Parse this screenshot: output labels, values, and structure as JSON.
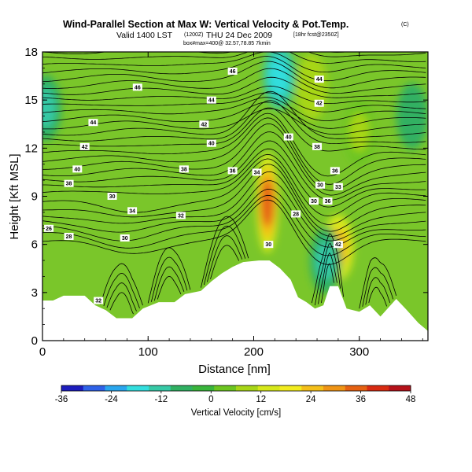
{
  "chart_data": {
    "type": "heatmap",
    "title": "Wind-Parallel Section at Max W: Vertical Velocity & Pot.Temp.",
    "title_mark": "(C)",
    "subtitle": "Valid 1400 LST",
    "subtitle_utc": "(1200Z)",
    "subtitle_date": "THU 24 Dec 2009",
    "subtitle_forecast": "[18hr fcst@2350Z]",
    "info_line": "box#max=400@ 32.57,78.85 7kmin",
    "xlabel": "Distance [nm]",
    "ylabel": "Height [Kft MSL]",
    "xlim": [
      0,
      365
    ],
    "ylim": [
      0,
      18
    ],
    "x_ticks": [
      0,
      100,
      200,
      300
    ],
    "y_ticks": [
      0,
      3,
      6,
      9,
      12,
      15,
      18
    ],
    "colorbar": {
      "label": "Vertical Velocity [cm/s]",
      "ticks": [
        "-36",
        "-24",
        "-12",
        "0",
        "12",
        "24",
        "36",
        "48"
      ],
      "min": -36,
      "max": 48,
      "colors": [
        "#1d1dbd",
        "#2f62e8",
        "#2aa6ee",
        "#33dede",
        "#36c9a6",
        "#30b062",
        "#39b53b",
        "#6cc520",
        "#a7d617",
        "#d6e81a",
        "#f2ec1e",
        "#f4bf19",
        "#ef9415",
        "#e56112",
        "#d82b12",
        "#b5121a"
      ]
    },
    "terrain_heights_kft": [
      [
        0,
        2.5
      ],
      [
        10,
        2.5
      ],
      [
        20,
        2.8
      ],
      [
        40,
        2.8
      ],
      [
        50,
        2.2
      ],
      [
        60,
        1.9
      ],
      [
        70,
        1.4
      ],
      [
        85,
        1.4
      ],
      [
        95,
        2.0
      ],
      [
        110,
        2.4
      ],
      [
        125,
        2.4
      ],
      [
        135,
        2.9
      ],
      [
        150,
        3.1
      ],
      [
        160,
        3.7
      ],
      [
        170,
        4.2
      ],
      [
        180,
        4.6
      ],
      [
        190,
        4.9
      ],
      [
        205,
        5.0
      ],
      [
        215,
        5.0
      ],
      [
        225,
        4.5
      ],
      [
        235,
        3.8
      ],
      [
        242,
        2.7
      ],
      [
        250,
        2.4
      ],
      [
        258,
        2.0
      ],
      [
        266,
        2.2
      ],
      [
        272,
        3.4
      ],
      [
        280,
        3.4
      ],
      [
        288,
        2.0
      ],
      [
        300,
        1.8
      ],
      [
        310,
        2.2
      ],
      [
        320,
        1.5
      ],
      [
        335,
        2.6
      ],
      [
        345,
        1.9
      ],
      [
        356,
        1.1
      ],
      [
        365,
        0.6
      ]
    ],
    "velocity_features": [
      {
        "name": "mountain-updraft",
        "x": 213,
        "y": 8.6,
        "peak": 44
      },
      {
        "name": "lee-updraft",
        "x": 280,
        "y": 5.8,
        "peak": 26
      },
      {
        "name": "lee-updraft-upper",
        "x": 255,
        "y": 15.8,
        "peak": 13
      },
      {
        "name": "upper-updraft-right",
        "x": 300,
        "y": 13.0,
        "peak": 11
      },
      {
        "name": "upper-downdraft",
        "x": 224,
        "y": 16.5,
        "peak": -20
      },
      {
        "name": "lee-downdraft",
        "x": 268,
        "y": 5.0,
        "peak": -14
      },
      {
        "name": "left-downdraft",
        "x": 3,
        "y": 14.5,
        "peak": -12
      },
      {
        "name": "right-downdraft",
        "x": 350,
        "y": 14.0,
        "peak": -10
      }
    ],
    "contour_labels": [
      {
        "text": "46",
        "x": 180,
        "y": 16.8
      },
      {
        "text": "46",
        "x": 90,
        "y": 15.8
      },
      {
        "text": "44",
        "x": 262,
        "y": 16.3
      },
      {
        "text": "44",
        "x": 160,
        "y": 15.0
      },
      {
        "text": "44",
        "x": 48,
        "y": 13.6
      },
      {
        "text": "42",
        "x": 262,
        "y": 14.8
      },
      {
        "text": "42",
        "x": 153,
        "y": 13.5
      },
      {
        "text": "42",
        "x": 40,
        "y": 12.1
      },
      {
        "text": "40",
        "x": 160,
        "y": 12.3
      },
      {
        "text": "40",
        "x": 233,
        "y": 12.7
      },
      {
        "text": "40",
        "x": 33,
        "y": 10.7
      },
      {
        "text": "38",
        "x": 260,
        "y": 12.1
      },
      {
        "text": "38",
        "x": 134,
        "y": 10.7
      },
      {
        "text": "38",
        "x": 25,
        "y": 9.8
      },
      {
        "text": "36",
        "x": 180,
        "y": 10.6
      },
      {
        "text": "36",
        "x": 277,
        "y": 10.6
      },
      {
        "text": "34",
        "x": 203,
        "y": 10.5
      },
      {
        "text": "34",
        "x": 85,
        "y": 8.1
      },
      {
        "text": "32",
        "x": 131,
        "y": 7.8
      },
      {
        "text": "30",
        "x": 263,
        "y": 9.7
      },
      {
        "text": "33",
        "x": 280,
        "y": 9.6
      },
      {
        "text": "30",
        "x": 66,
        "y": 9.0
      },
      {
        "text": "28",
        "x": 240,
        "y": 7.9
      },
      {
        "text": "30",
        "x": 257,
        "y": 8.7
      },
      {
        "text": "36",
        "x": 270,
        "y": 8.7
      },
      {
        "text": "26",
        "x": 6,
        "y": 7.0
      },
      {
        "text": "28",
        "x": 25,
        "y": 6.5
      },
      {
        "text": "30",
        "x": 78,
        "y": 6.4
      },
      {
        "text": "30",
        "x": 214,
        "y": 6.0
      },
      {
        "text": "42",
        "x": 280,
        "y": 6.0
      },
      {
        "text": "32",
        "x": 53,
        "y": 2.5
      }
    ]
  }
}
